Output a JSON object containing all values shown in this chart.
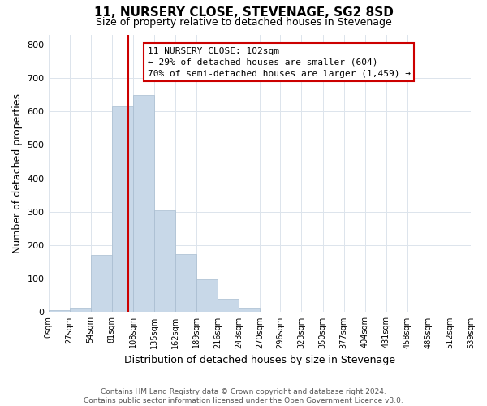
{
  "title": "11, NURSERY CLOSE, STEVENAGE, SG2 8SD",
  "subtitle": "Size of property relative to detached houses in Stevenage",
  "xlabel": "Distribution of detached houses by size in Stevenage",
  "ylabel": "Number of detached properties",
  "bar_edges": [
    0,
    27,
    54,
    81,
    108,
    135,
    162,
    189,
    216,
    243,
    270,
    296,
    323,
    350,
    377,
    404,
    431,
    458,
    485,
    512,
    539
  ],
  "bar_heights": [
    5,
    13,
    170,
    615,
    650,
    305,
    173,
    97,
    40,
    14,
    2,
    0,
    2,
    0,
    0,
    2,
    0,
    0,
    0,
    0
  ],
  "bar_color": "#c8d8e8",
  "bar_edgecolor": "#a8bcd0",
  "property_size": 102,
  "vline_color": "#cc0000",
  "annotation_title": "11 NURSERY CLOSE: 102sqm",
  "annotation_line1": "← 29% of detached houses are smaller (604)",
  "annotation_line2": "70% of semi-detached houses are larger (1,459) →",
  "annotation_box_color": "#ffffff",
  "annotation_box_edgecolor": "#cc0000",
  "tick_labels": [
    "0sqm",
    "27sqm",
    "54sqm",
    "81sqm",
    "108sqm",
    "135sqm",
    "162sqm",
    "189sqm",
    "216sqm",
    "243sqm",
    "270sqm",
    "296sqm",
    "323sqm",
    "350sqm",
    "377sqm",
    "404sqm",
    "431sqm",
    "458sqm",
    "485sqm",
    "512sqm",
    "539sqm"
  ],
  "ylim": [
    0,
    830
  ],
  "yticks": [
    0,
    100,
    200,
    300,
    400,
    500,
    600,
    700,
    800
  ],
  "footer_line1": "Contains HM Land Registry data © Crown copyright and database right 2024.",
  "footer_line2": "Contains public sector information licensed under the Open Government Licence v3.0.",
  "bg_color": "#ffffff",
  "grid_color": "#dce4ec",
  "title_fontsize": 11,
  "subtitle_fontsize": 9,
  "ylabel_fontsize": 9,
  "xlabel_fontsize": 9,
  "annotation_fontsize": 8,
  "footer_fontsize": 6.5
}
